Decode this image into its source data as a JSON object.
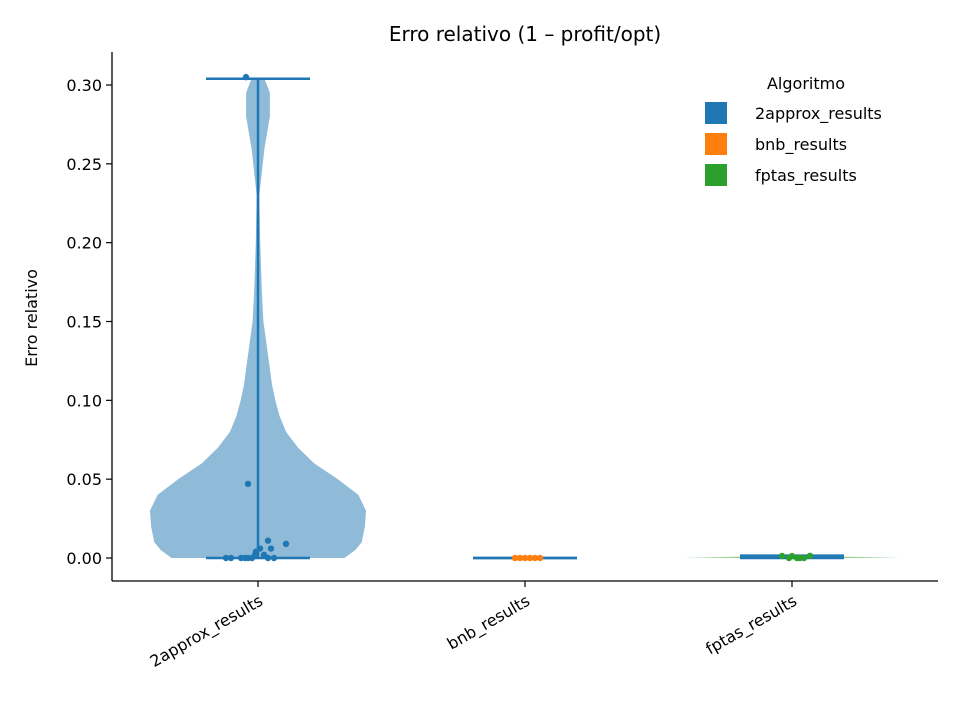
{
  "chart_data": {
    "type": "violin",
    "title": "Erro relativo (1 – profit/opt)",
    "xlabel": "",
    "ylabel": "Erro relativo",
    "ylim": [
      -0.015,
      0.32
    ],
    "yticks": [
      0.0,
      0.05,
      0.1,
      0.15,
      0.2,
      0.25,
      0.3
    ],
    "ytick_labels": [
      "0.00",
      "0.05",
      "0.10",
      "0.15",
      "0.20",
      "0.25",
      "0.30"
    ],
    "categories": [
      "2approx_results",
      "bnb_results",
      "fptas_results"
    ],
    "grid": false,
    "legend": {
      "title": "Algoritmo",
      "position": "top-right",
      "entries": [
        "2approx_results",
        "bnb_results",
        "fptas_results"
      ]
    },
    "colors": {
      "2approx_results": "#1f77b4",
      "bnb_results": "#ff7f0e",
      "fptas_results": "#2ca02c",
      "violin_stat_lines": "#1f77b4"
    },
    "series": [
      {
        "name": "2approx_results",
        "min": 0.0,
        "max": 0.304,
        "density": [
          [
            0.0,
            0.8
          ],
          [
            0.005,
            0.9
          ],
          [
            0.01,
            0.96
          ],
          [
            0.02,
            0.99
          ],
          [
            0.03,
            1.0
          ],
          [
            0.04,
            0.93
          ],
          [
            0.05,
            0.74
          ],
          [
            0.06,
            0.52
          ],
          [
            0.07,
            0.37
          ],
          [
            0.08,
            0.26
          ],
          [
            0.09,
            0.2
          ],
          [
            0.1,
            0.16
          ],
          [
            0.11,
            0.13
          ],
          [
            0.12,
            0.11
          ],
          [
            0.13,
            0.09
          ],
          [
            0.14,
            0.07
          ],
          [
            0.15,
            0.05
          ],
          [
            0.17,
            0.035
          ],
          [
            0.2,
            0.02
          ],
          [
            0.23,
            0.012
          ],
          [
            0.26,
            0.06
          ],
          [
            0.28,
            0.11
          ],
          [
            0.295,
            0.11
          ],
          [
            0.304,
            0.06
          ]
        ],
        "points": [
          {
            "x": -0.32,
            "y": 0.0
          },
          {
            "x": -0.27,
            "y": 0.0
          },
          {
            "x": -0.17,
            "y": 0.0
          },
          {
            "x": -0.13,
            "y": 0.0
          },
          {
            "x": -0.1,
            "y": 0.0
          },
          {
            "x": -0.06,
            "y": 0.0
          },
          {
            "x": -0.03,
            "y": 0.002
          },
          {
            "x": -0.02,
            "y": 0.004
          },
          {
            "x": 0.02,
            "y": 0.006
          },
          {
            "x": 0.06,
            "y": 0.002
          },
          {
            "x": 0.1,
            "y": 0.011
          },
          {
            "x": 0.1,
            "y": 0.0
          },
          {
            "x": 0.13,
            "y": 0.006
          },
          {
            "x": 0.16,
            "y": 0.0
          },
          {
            "x": 0.28,
            "y": 0.009
          },
          {
            "x": -0.1,
            "y": 0.047
          },
          {
            "x": -0.12,
            "y": 0.305
          }
        ]
      },
      {
        "name": "bnb_results",
        "min": 0.0,
        "max": 0.0,
        "density": [],
        "points": [
          {
            "x": -0.1,
            "y": 0.0
          },
          {
            "x": -0.05,
            "y": 0.0
          },
          {
            "x": 0.0,
            "y": 0.0
          },
          {
            "x": 0.05,
            "y": 0.0
          },
          {
            "x": 0.1,
            "y": 0.0
          },
          {
            "x": 0.15,
            "y": 0.0
          }
        ]
      },
      {
        "name": "fptas_results",
        "min": 0.0,
        "max": 0.0015,
        "density": [
          [
            0.0,
            1.0
          ],
          [
            0.0015,
            0.05
          ]
        ],
        "points": [
          {
            "x": -0.1,
            "y": 0.0013
          },
          {
            "x": -0.03,
            "y": 0.0
          },
          {
            "x": 0.0,
            "y": 0.0012
          },
          {
            "x": 0.05,
            "y": 0.0
          },
          {
            "x": 0.08,
            "y": 0.0
          },
          {
            "x": 0.12,
            "y": 0.0
          },
          {
            "x": 0.18,
            "y": 0.0014
          }
        ]
      }
    ]
  }
}
